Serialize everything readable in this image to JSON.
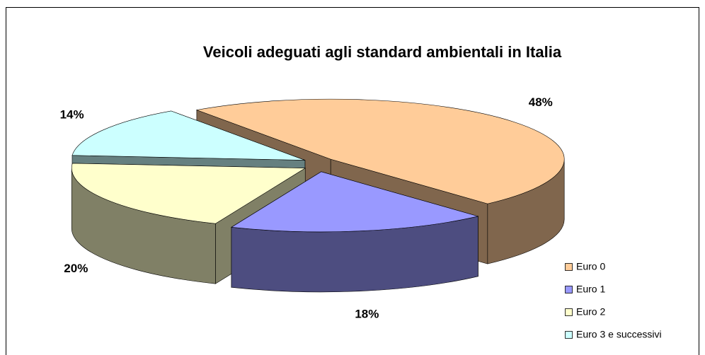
{
  "chart_data": {
    "type": "pie3d",
    "title": "Veicoli adeguati agli standard ambientali in Italia",
    "categories": [
      "Euro 0",
      "Euro 1",
      "Euro 2",
      "Euro 3 e successivi"
    ],
    "values": [
      48,
      18,
      20,
      14
    ],
    "value_labels": [
      "48%",
      "18%",
      "20%",
      "14%"
    ],
    "colors": [
      "#ffcc99",
      "#9999ff",
      "#ffffcc",
      "#ccffff"
    ],
    "legend": "right"
  }
}
